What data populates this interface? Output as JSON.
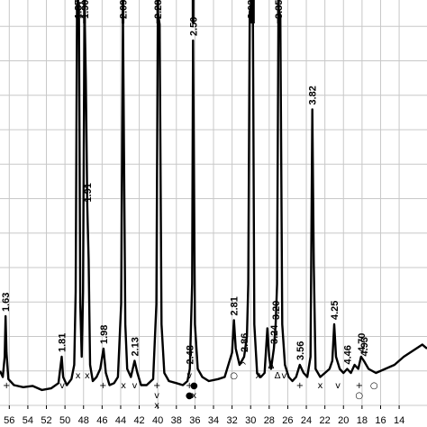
{
  "chart_data": {
    "type": "line",
    "title": "",
    "xlabel": "",
    "ylabel": "",
    "x_reversed": true,
    "xlim": [
      57,
      11
    ],
    "ylim": [
      0,
      100
    ],
    "grid": true,
    "x_ticks": [
      56,
      54,
      52,
      50,
      48,
      46,
      44,
      42,
      40,
      38,
      36,
      34,
      32,
      30,
      28,
      26,
      24,
      22,
      20,
      18,
      16,
      14
    ],
    "series": [
      {
        "points": [
          [
            57,
            8.5
          ],
          [
            56.7,
            7
          ],
          [
            56.5,
            12
          ],
          [
            56.4,
            22
          ],
          [
            56.3,
            13
          ],
          [
            56.1,
            6.5
          ],
          [
            55.5,
            5
          ],
          [
            54.5,
            4.5
          ],
          [
            53.5,
            4.8
          ],
          [
            52.5,
            3.8
          ],
          [
            51.5,
            4.2
          ],
          [
            50.7,
            5.5
          ],
          [
            50.35,
            12
          ],
          [
            50.2,
            7
          ],
          [
            49.8,
            5
          ],
          [
            49.3,
            6.5
          ],
          [
            49.0,
            10
          ],
          [
            48.85,
            28
          ],
          [
            48.7,
            99
          ],
          [
            48.5,
            99
          ],
          [
            48.35,
            25
          ],
          [
            48.2,
            12
          ],
          [
            48.05,
            28
          ],
          [
            47.9,
            99
          ],
          [
            47.75,
            80
          ],
          [
            47.6,
            49
          ],
          [
            47.45,
            36
          ],
          [
            47.3,
            10
          ],
          [
            47.0,
            6
          ],
          [
            46.6,
            7
          ],
          [
            46.2,
            9
          ],
          [
            45.85,
            14
          ],
          [
            45.6,
            8
          ],
          [
            45.2,
            5
          ],
          [
            44.7,
            5.5
          ],
          [
            44.3,
            7
          ],
          [
            43.95,
            25
          ],
          [
            43.75,
            96
          ],
          [
            43.5,
            20
          ],
          [
            43.3,
            9
          ],
          [
            42.9,
            7
          ],
          [
            42.5,
            11
          ],
          [
            42.2,
            8
          ],
          [
            41.8,
            5
          ],
          [
            41.2,
            5
          ],
          [
            40.5,
            6.5
          ],
          [
            40.15,
            25
          ],
          [
            40.0,
            97
          ],
          [
            39.8,
            94
          ],
          [
            39.6,
            20
          ],
          [
            39.3,
            8
          ],
          [
            38.8,
            6
          ],
          [
            38.0,
            5.5
          ],
          [
            37.3,
            5
          ],
          [
            36.8,
            6
          ],
          [
            36.55,
            9
          ],
          [
            36.3,
            30
          ],
          [
            36.2,
            90
          ],
          [
            36.0,
            20
          ],
          [
            35.7,
            9
          ],
          [
            35.2,
            7
          ],
          [
            34.5,
            6
          ],
          [
            33.5,
            6.5
          ],
          [
            32.8,
            7
          ],
          [
            32.4,
            10
          ],
          [
            32.0,
            13
          ],
          [
            31.8,
            21
          ],
          [
            31.6,
            14
          ],
          [
            31.2,
            10
          ],
          [
            30.7,
            12
          ],
          [
            30.4,
            17
          ],
          [
            30.25,
            30
          ],
          [
            30.1,
            97
          ],
          [
            29.95,
            99
          ],
          [
            29.75,
            94
          ],
          [
            29.6,
            20
          ],
          [
            29.3,
            8
          ],
          [
            28.9,
            7
          ],
          [
            28.5,
            8
          ],
          [
            28.2,
            19
          ],
          [
            28.0,
            12
          ],
          [
            27.8,
            9
          ],
          [
            27.5,
            14
          ],
          [
            27.3,
            20
          ],
          [
            27.15,
            30
          ],
          [
            27.0,
            98
          ],
          [
            26.8,
            96
          ],
          [
            26.6,
            20
          ],
          [
            26.3,
            10
          ],
          [
            25.9,
            7
          ],
          [
            25.5,
            6
          ],
          [
            25.1,
            7
          ],
          [
            24.7,
            10
          ],
          [
            24.3,
            8
          ],
          [
            23.9,
            7
          ],
          [
            23.55,
            12
          ],
          [
            23.35,
            73
          ],
          [
            23.2,
            35
          ],
          [
            23.0,
            9
          ],
          [
            22.5,
            7
          ],
          [
            22.0,
            8
          ],
          [
            21.5,
            9
          ],
          [
            21.2,
            11
          ],
          [
            21.0,
            20
          ],
          [
            20.8,
            12
          ],
          [
            20.4,
            9
          ],
          [
            20.0,
            8
          ],
          [
            19.6,
            9
          ],
          [
            19.2,
            8
          ],
          [
            18.8,
            10
          ],
          [
            18.4,
            9
          ],
          [
            18.1,
            12
          ],
          [
            17.8,
            11
          ],
          [
            17.3,
            9
          ],
          [
            16.5,
            8
          ],
          [
            15.5,
            9
          ],
          [
            14.5,
            10
          ],
          [
            13.5,
            12
          ],
          [
            12.5,
            13.5
          ],
          [
            11.5,
            15
          ],
          [
            11,
            14
          ]
        ]
      }
    ],
    "peak_labels": [
      {
        "text": "1.63",
        "x": 56.4,
        "y": 22
      },
      {
        "text": "1.81",
        "x": 50.35,
        "y": 12
      },
      {
        "text": "1.87",
        "x": 48.6,
        "y": 99
      },
      {
        "text": "1.91",
        "x": 47.6,
        "y": 49
      },
      {
        "text": "1.90",
        "x": 47.9,
        "y": 99
      },
      {
        "text": "1.98",
        "x": 45.85,
        "y": 14
      },
      {
        "text": "2.09",
        "x": 43.75,
        "y": 96
      },
      {
        "text": "2.13",
        "x": 42.5,
        "y": 11
      },
      {
        "text": "2.28",
        "x": 40.0,
        "y": 97
      },
      {
        "text": "2.48",
        "x": 36.55,
        "y": 9
      },
      {
        "text": "2.50",
        "x": 36.2,
        "y": 90
      },
      {
        "text": "2.81",
        "x": 31.8,
        "y": 21
      },
      {
        "text": "2.86",
        "x": 30.7,
        "y": 12
      },
      {
        "text": "3.03",
        "x": 29.95,
        "y": 99
      },
      {
        "text": "3.20",
        "x": 27.3,
        "y": 20
      },
      {
        "text": "3.24",
        "x": 27.5,
        "y": 14
      },
      {
        "text": "3.35",
        "x": 27.0,
        "y": 98
      },
      {
        "text": "3.56",
        "x": 24.7,
        "y": 10
      },
      {
        "text": "3.82",
        "x": 23.35,
        "y": 73
      },
      {
        "text": "4.25",
        "x": 21.0,
        "y": 20
      },
      {
        "text": "4.46",
        "x": 19.6,
        "y": 9
      },
      {
        "text": "4.70",
        "x": 18.1,
        "y": 12
      },
      {
        "text": "4.93",
        "x": 17.8,
        "y": 11
      }
    ],
    "phase_markers": [
      {
        "symbol": "+",
        "x": 56.3,
        "row": 1
      },
      {
        "symbol": "v",
        "x": 50.3,
        "row": 1
      },
      {
        "symbol": "x",
        "x": 48.6,
        "row": 0
      },
      {
        "symbol": "x",
        "x": 47.6,
        "row": 0
      },
      {
        "symbol": "+",
        "x": 45.9,
        "row": 1
      },
      {
        "symbol": "x",
        "x": 43.7,
        "row": 1
      },
      {
        "symbol": "v",
        "x": 42.5,
        "row": 1
      },
      {
        "symbol": "+",
        "x": 40.1,
        "row": 1
      },
      {
        "symbol": "v",
        "x": 40.1,
        "row": 2
      },
      {
        "symbol": "x",
        "x": 40.1,
        "row": 3
      },
      {
        "symbol": "v",
        "x": 36.6,
        "row": 0
      },
      {
        "symbol": "+",
        "x": 36.6,
        "row": 1
      },
      {
        "symbol": "●",
        "x": 36.6,
        "row": 2
      },
      {
        "symbol": "●",
        "x": 36.1,
        "row": 1
      },
      {
        "symbol": "x",
        "x": 36.1,
        "row": 2
      },
      {
        "symbol": "○",
        "x": 31.8,
        "row": 0
      },
      {
        "symbol": "^",
        "x": 30.8,
        "row": -1
      },
      {
        "symbol": "x",
        "x": 29.2,
        "row": 0
      },
      {
        "symbol": "Δ",
        "x": 27.8,
        "row": -1
      },
      {
        "symbol": "Δ",
        "x": 27.1,
        "row": 0
      },
      {
        "symbol": "v",
        "x": 26.4,
        "row": 0
      },
      {
        "symbol": "+",
        "x": 24.7,
        "row": 1
      },
      {
        "symbol": "x",
        "x": 22.5,
        "row": 1
      },
      {
        "symbol": "v",
        "x": 20.6,
        "row": 1
      },
      {
        "symbol": "+",
        "x": 18.3,
        "row": 1
      },
      {
        "symbol": "○",
        "x": 18.3,
        "row": 2
      },
      {
        "symbol": "○",
        "x": 16.7,
        "row": 1
      }
    ],
    "clipped_peak_marks": [
      48.6,
      47.9,
      43.75,
      40.0,
      36.2,
      29.95,
      29.7,
      27.0
    ]
  }
}
